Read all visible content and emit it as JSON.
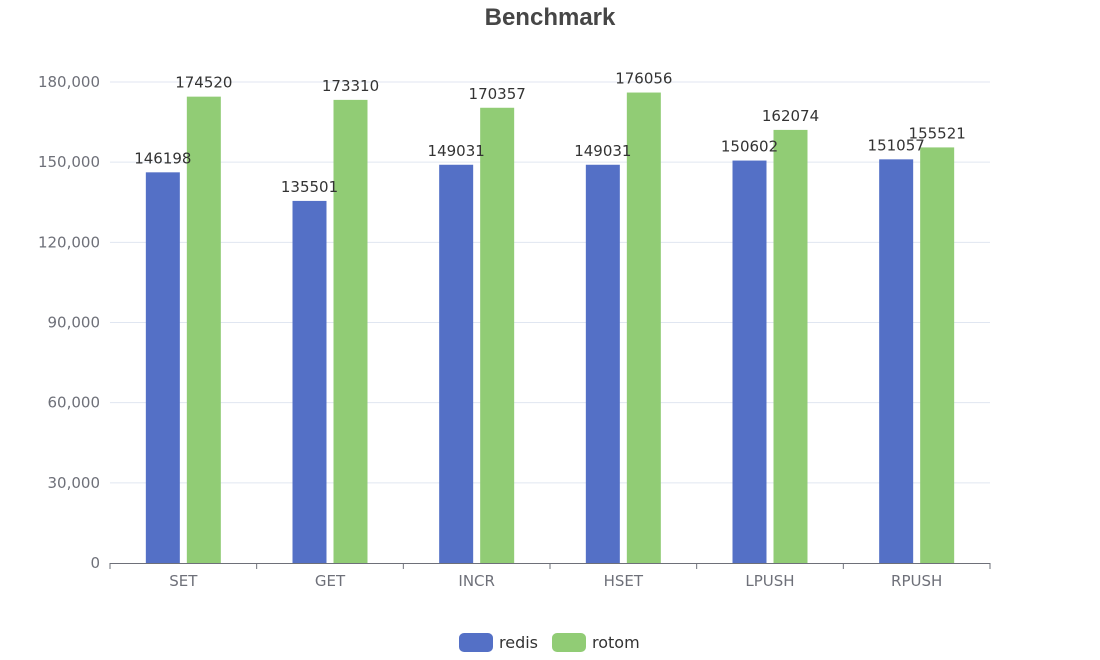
{
  "chart_data": {
    "type": "bar",
    "title": "Benchmark",
    "categories": [
      "SET",
      "GET",
      "INCR",
      "HSET",
      "LPUSH",
      "RPUSH"
    ],
    "series": [
      {
        "name": "redis",
        "color": "#5470c6",
        "values": [
          146198,
          135501,
          149031,
          149031,
          150602,
          151057
        ]
      },
      {
        "name": "rotom",
        "color": "#91cc75",
        "values": [
          174520,
          173310,
          170357,
          176056,
          162074,
          155521
        ]
      }
    ],
    "ylim": [
      0,
      180000
    ],
    "yticks": [
      0,
      30000,
      60000,
      90000,
      120000,
      150000,
      180000
    ],
    "ytick_labels": [
      "0",
      "30,000",
      "60,000",
      "90,000",
      "120,000",
      "150,000",
      "180,000"
    ],
    "xlabel": "",
    "ylabel": "",
    "grid": true,
    "legend_position": "bottom-center"
  }
}
